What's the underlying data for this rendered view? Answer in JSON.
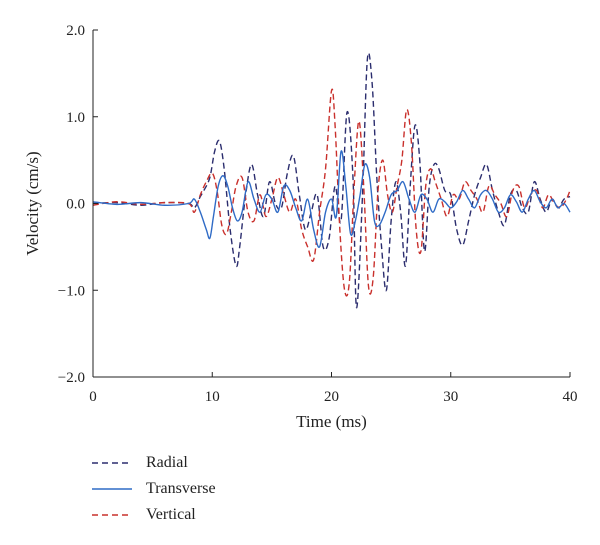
{
  "chart_data": {
    "type": "line",
    "xlabel": "Time (ms)",
    "ylabel": "Velocity (cm/s)",
    "xlim": [
      0,
      40
    ],
    "ylim": [
      -2.0,
      2.0
    ],
    "xticks": [
      0,
      10,
      20,
      30,
      40
    ],
    "xtick_labels": [
      "0",
      "10",
      "20",
      "30",
      "40"
    ],
    "yticks": [
      2.0,
      1.0,
      0.0,
      -1.0,
      -2.0
    ],
    "ytick_labels": [
      "2.0",
      "1.0",
      "0.0",
      "−1.0",
      "−2.0"
    ],
    "grid": false,
    "legend_position": "bottom-left",
    "series": [
      {
        "name": "Radial",
        "color": "#2b2d6e",
        "dash": "dashed",
        "x": [
          0,
          2,
          4,
          6,
          8,
          8.5,
          9,
          9.3,
          9.8,
          10.2,
          10.6,
          11,
          11.5,
          12,
          12.3,
          12.8,
          13.3,
          13.8,
          14.3,
          14.8,
          15.3,
          15.8,
          16.3,
          16.8,
          17.3,
          17.8,
          18.3,
          18.8,
          19.3,
          19.8,
          20.3,
          20.8,
          21.3,
          21.8,
          22.1,
          22.6,
          23.0,
          23.4,
          23.8,
          24.2,
          24.6,
          25.0,
          25.4,
          25.8,
          26.2,
          26.6,
          27.0,
          27.4,
          27.8,
          28.2,
          28.6,
          29.0,
          29.5,
          30,
          30.5,
          31,
          31.5,
          32,
          32.5,
          33,
          33.5,
          34,
          34.5,
          35,
          35.5,
          36,
          36.5,
          37,
          37.5,
          38,
          38.5,
          39,
          39.5,
          40
        ],
        "y": [
          0,
          0.01,
          -0.02,
          0.01,
          0,
          -0.05,
          0.08,
          0.15,
          0.3,
          0.6,
          0.72,
          0.4,
          -0.3,
          -0.72,
          -0.5,
          0.1,
          0.45,
          0.1,
          -0.15,
          0.25,
          0,
          -0.05,
          0.35,
          0.55,
          0.1,
          -0.3,
          -0.1,
          0.1,
          -0.5,
          -0.4,
          0.2,
          -0.2,
          1.05,
          0.3,
          -1.2,
          0.1,
          1.65,
          1.4,
          0.3,
          -0.5,
          -1.0,
          -0.2,
          0.25,
          -0.1,
          -0.72,
          0.2,
          0.9,
          0.5,
          -0.55,
          0.2,
          0.45,
          0.4,
          0.15,
          0.1,
          -0.3,
          -0.48,
          -0.2,
          0.1,
          0.3,
          0.45,
          0.15,
          -0.1,
          -0.25,
          0.1,
          0.15,
          -0.05,
          -0.1,
          0.25,
          0.05,
          -0.1,
          0.05,
          -0.05,
          0.05,
          0.08
        ]
      },
      {
        "name": "Transverse",
        "color": "#2f6bc6",
        "dash": "solid",
        "x": [
          0,
          2,
          4,
          6,
          8,
          8.5,
          9,
          9.5,
          9.8,
          10.1,
          10.5,
          10.9,
          11.3,
          11.7,
          12.1,
          12.5,
          13,
          13.5,
          14,
          14.5,
          15,
          15.5,
          16,
          16.5,
          17,
          17.5,
          18,
          18.5,
          19,
          19.5,
          20,
          20.4,
          20.8,
          21.2,
          21.6,
          22,
          22.4,
          22.8,
          23.2,
          23.6,
          24,
          24.5,
          25,
          25.5,
          26,
          26.5,
          27,
          27.5,
          28,
          28.5,
          29,
          29.5,
          30,
          30.5,
          31,
          31.5,
          32,
          32.5,
          33,
          33.5,
          34,
          34.5,
          35,
          35.5,
          36,
          36.5,
          37,
          37.5,
          38,
          38.5,
          39,
          39.5,
          40
        ],
        "y": [
          0.02,
          -0.01,
          0.01,
          -0.02,
          0,
          0.05,
          -0.1,
          -0.3,
          -0.4,
          -0.15,
          0.2,
          0.32,
          0.2,
          -0.05,
          -0.2,
          -0.1,
          0.25,
          0.05,
          -0.1,
          0.1,
          0.05,
          -0.1,
          0.2,
          0.15,
          -0.05,
          -0.2,
          0.05,
          -0.3,
          -0.5,
          -0.1,
          0.05,
          -0.15,
          0.6,
          0.2,
          -0.35,
          -0.2,
          0.1,
          0.45,
          0.3,
          -0.2,
          -0.25,
          -0.1,
          0.1,
          0.15,
          0.25,
          0.05,
          -0.1,
          0.1,
          0.05,
          -0.1,
          0.05,
          0.02,
          -0.05,
          0.02,
          0.15,
          0.05,
          -0.05,
          0.1,
          0.15,
          0.05,
          -0.1,
          -0.05,
          0.1,
          0.02,
          -0.1,
          0.05,
          0.15,
          0.02,
          -0.05,
          0.05,
          -0.05,
          0,
          -0.1
        ]
      },
      {
        "name": "Vertical",
        "color": "#c9302c",
        "dash": "dashed",
        "x": [
          0,
          2,
          4,
          6,
          8,
          8.5,
          9,
          9.5,
          10,
          10.4,
          10.8,
          11.2,
          11.6,
          12,
          12.5,
          13,
          13.5,
          14,
          14.5,
          15,
          15.5,
          16,
          16.5,
          17,
          17.5,
          18,
          18.5,
          19,
          19.5,
          20,
          20.3,
          20.7,
          21.1,
          21.5,
          21.9,
          22.3,
          22.7,
          23.1,
          23.5,
          23.9,
          24.3,
          24.7,
          25.1,
          25.5,
          25.9,
          26.3,
          26.7,
          27.1,
          27.5,
          27.9,
          28.3,
          28.7,
          29.2,
          29.7,
          30.2,
          30.7,
          31.2,
          31.7,
          32.2,
          32.7,
          33.2,
          33.7,
          34.2,
          34.7,
          35.2,
          35.7,
          36.2,
          36.7,
          37.2,
          37.7,
          38.2,
          38.7,
          39.2,
          39.7,
          40
        ],
        "y": [
          -0.02,
          0.02,
          -0.01,
          0.01,
          0,
          -0.1,
          0.1,
          0.25,
          0.35,
          0.15,
          -0.25,
          -0.35,
          -0.1,
          0.2,
          0.3,
          -0.1,
          -0.2,
          0.1,
          -0.15,
          0.05,
          0.3,
          0.1,
          -0.1,
          0.05,
          -0.3,
          -0.5,
          -0.65,
          -0.1,
          0.4,
          1.3,
          0.9,
          -0.3,
          -1.0,
          -0.9,
          0.2,
          0.95,
          0.2,
          -0.95,
          -0.85,
          0.15,
          0.5,
          0.1,
          -0.1,
          0.2,
          0.5,
          1.08,
          0.7,
          -0.3,
          -0.55,
          0.2,
          0.4,
          0.25,
          0.05,
          -0.15,
          0.1,
          0.05,
          0.25,
          0.15,
          0.05,
          -0.1,
          0.2,
          0.1,
          0,
          -0.15,
          0.15,
          0.2,
          -0.05,
          0.1,
          0.15,
          -0.05,
          0.1,
          0,
          -0.05,
          0.05,
          0.15
        ]
      }
    ]
  }
}
